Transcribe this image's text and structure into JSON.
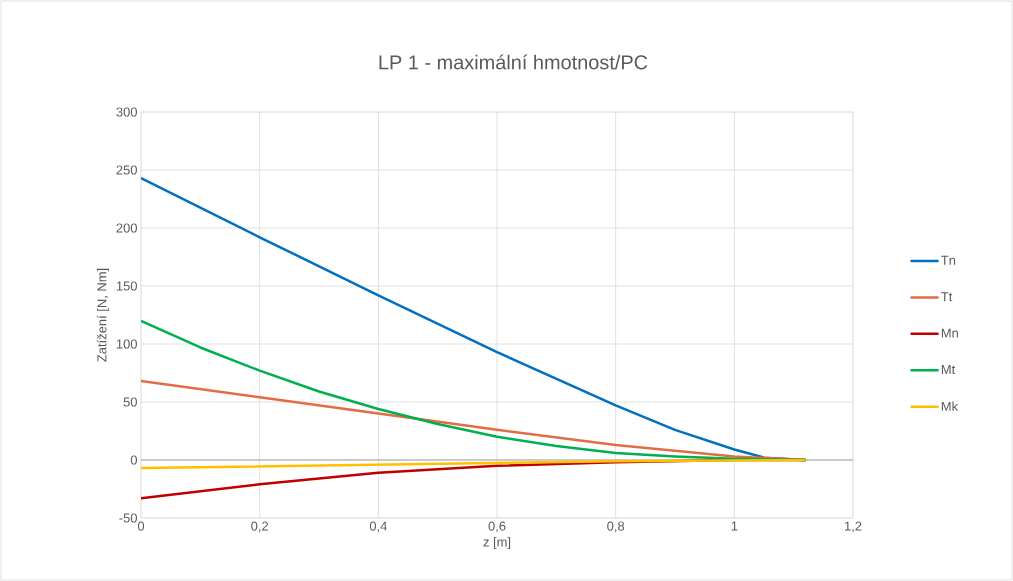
{
  "chart_data": {
    "type": "line",
    "title": "LP 1 - maximální hmotnost/PC",
    "xlabel": "z [m]",
    "ylabel": "Zatížení [N, Nm]",
    "xlim": [
      0,
      1.2
    ],
    "ylim": [
      -50,
      300
    ],
    "xticks": [
      0,
      {
        "value": 0.2,
        "label": "0,2"
      },
      {
        "value": 0.4,
        "label": "0,4"
      },
      {
        "value": 0.6,
        "label": "0,6"
      },
      {
        "value": 0.8,
        "label": "0,8"
      },
      1,
      {
        "value": 1.2,
        "label": "1,2"
      }
    ],
    "yticks": [
      -50,
      0,
      50,
      100,
      150,
      200,
      250,
      300
    ],
    "grid": true,
    "legend": "right",
    "marker": "none",
    "line_style": "solid",
    "series": [
      {
        "name": "Tn",
        "color": "#0070c0",
        "x": [
          0,
          0.2,
          0.4,
          0.6,
          0.8,
          0.9,
          1.0,
          1.05,
          1.12
        ],
        "values": [
          243,
          192,
          142,
          93,
          47,
          26,
          9,
          2,
          0
        ]
      },
      {
        "name": "Tt",
        "color": "#e46c44",
        "x": [
          0,
          0.2,
          0.4,
          0.6,
          0.8,
          1.0,
          1.12
        ],
        "values": [
          68,
          54,
          40,
          26,
          13,
          3,
          0
        ]
      },
      {
        "name": "Mn",
        "color": "#c00000",
        "x": [
          0,
          0.2,
          0.4,
          0.6,
          0.8,
          1.0,
          1.12
        ],
        "values": [
          -33,
          -21,
          -11,
          -5,
          -2,
          0,
          0
        ]
      },
      {
        "name": "Mt",
        "color": "#00b050",
        "x": [
          0,
          0.1,
          0.2,
          0.3,
          0.4,
          0.5,
          0.6,
          0.7,
          0.8,
          0.9,
          1.0,
          1.12
        ],
        "values": [
          120,
          97,
          77,
          59,
          44,
          31,
          20,
          12,
          6,
          3,
          1,
          0
        ]
      },
      {
        "name": "Mk",
        "color": "#ffc000",
        "x": [
          0,
          0.4,
          0.8,
          1.12
        ],
        "values": [
          -7,
          -4,
          -1,
          0
        ]
      }
    ]
  }
}
